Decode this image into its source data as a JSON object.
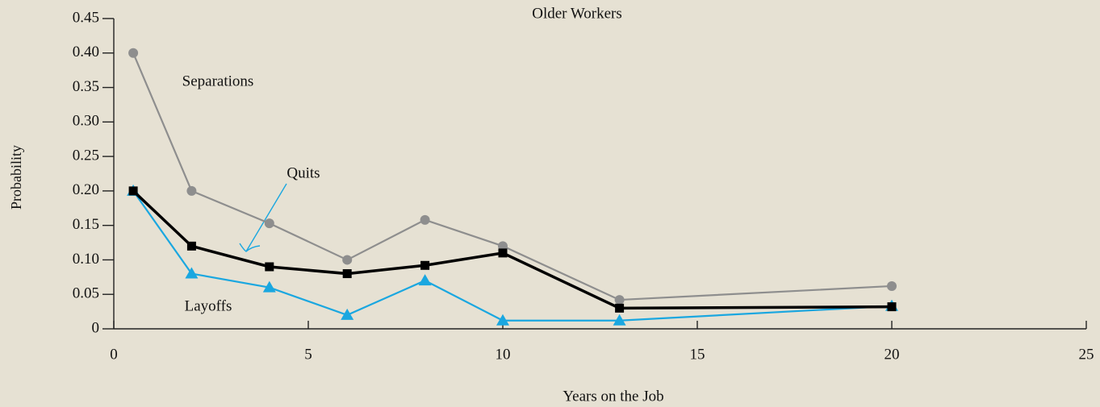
{
  "chart_data": {
    "type": "line",
    "title": "Older Workers",
    "x_label": "Years on the Job",
    "y_label": "Probability",
    "x": [
      0.5,
      2,
      4,
      6,
      8,
      10,
      13,
      20
    ],
    "series": [
      {
        "name": "Separations",
        "color": "#8e8e8e",
        "marker": "circle",
        "values": [
          0.4,
          0.2,
          0.153,
          0.1,
          0.158,
          0.12,
          0.042,
          0.062
        ]
      },
      {
        "name": "Quits",
        "color": "#000000",
        "marker": "square",
        "values": [
          0.2,
          0.12,
          0.09,
          0.08,
          0.092,
          0.11,
          0.03,
          0.032
        ]
      },
      {
        "name": "Layoffs",
        "color": "#1aa7e0",
        "marker": "triangle",
        "values": [
          0.2,
          0.08,
          0.06,
          0.02,
          0.07,
          0.012,
          0.012,
          0.033
        ]
      }
    ],
    "xlim": [
      0,
      25
    ],
    "xticks": [
      0,
      5,
      10,
      15,
      20,
      25
    ],
    "ylim": [
      0,
      0.45
    ],
    "yticks": [
      0,
      0.05,
      {
        "value": 0.1,
        "label": "0.10"
      },
      0.15,
      {
        "value": 0.2,
        "label": "0.20"
      },
      0.25,
      {
        "value": 0.3,
        "label": "0.30"
      },
      0.35,
      {
        "value": 0.4,
        "label": "0.40"
      },
      0.45
    ]
  }
}
